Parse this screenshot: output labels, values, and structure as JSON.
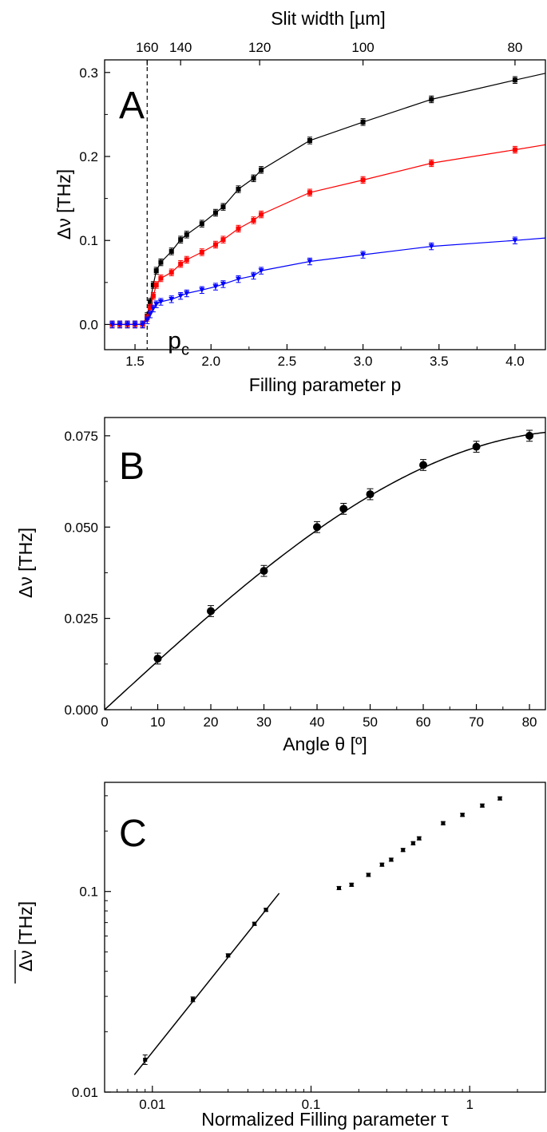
{
  "chart_data": [
    {
      "panel": "A",
      "type": "line",
      "xlabel": "Filling parameter p",
      "ylabel": "Δν [THz]",
      "top_axis_label": "Slit width [µm]",
      "xlim": [
        1.3,
        4.2
      ],
      "ylim": [
        -0.03,
        0.315
      ],
      "x_ticks": [
        1.5,
        2.0,
        2.5,
        3.0,
        3.5,
        4.0
      ],
      "x_tick_labels": [
        "1.5",
        "2.0",
        "2.5",
        "3.0",
        "3.5",
        "4.0"
      ],
      "y_ticks": [
        0.0,
        0.1,
        0.2,
        0.3
      ],
      "y_tick_labels": [
        "0.0",
        "0.1",
        "0.2",
        "0.3"
      ],
      "top_ticks": [
        {
          "p": 1.58,
          "label": "160"
        },
        {
          "p": 1.8,
          "label": "140"
        },
        {
          "p": 2.32,
          "label": "120"
        },
        {
          "p": 3.0,
          "label": "100"
        },
        {
          "p": 4.0,
          "label": "80"
        }
      ],
      "threshold": {
        "x": 1.58,
        "label": "p",
        "subscript": "c",
        "style": "dashed"
      },
      "series": [
        {
          "color": "#000000",
          "marker": "square",
          "x": [
            1.35,
            1.4,
            1.45,
            1.5,
            1.55,
            1.58,
            1.6,
            1.62,
            1.64,
            1.67,
            1.74,
            1.8,
            1.84,
            1.94,
            2.03,
            2.08,
            2.18,
            2.28,
            2.33,
            2.65,
            3.0,
            3.45,
            4.0,
            4.2
          ],
          "y": [
            0.0,
            0.0,
            0.0,
            0.0,
            0.0,
            0.01,
            0.027,
            0.047,
            0.064,
            0.074,
            0.087,
            0.101,
            0.107,
            0.12,
            0.133,
            0.14,
            0.161,
            0.174,
            0.184,
            0.219,
            0.241,
            0.268,
            0.291,
            0.299
          ],
          "err": 0.004
        },
        {
          "color": "#ff0000",
          "marker": "square",
          "x": [
            1.35,
            1.4,
            1.45,
            1.5,
            1.55,
            1.58,
            1.6,
            1.62,
            1.64,
            1.67,
            1.74,
            1.8,
            1.84,
            1.94,
            2.03,
            2.08,
            2.18,
            2.28,
            2.33,
            2.65,
            3.0,
            3.45,
            4.0,
            4.2
          ],
          "y": [
            0.0,
            0.0,
            0.0,
            0.0,
            0.0,
            0.008,
            0.02,
            0.034,
            0.047,
            0.055,
            0.062,
            0.072,
            0.077,
            0.086,
            0.095,
            0.101,
            0.114,
            0.124,
            0.131,
            0.157,
            0.172,
            0.192,
            0.208,
            0.214
          ],
          "err": 0.004
        },
        {
          "color": "#0000ff",
          "marker": "triangle-down",
          "x": [
            1.35,
            1.4,
            1.45,
            1.5,
            1.55,
            1.58,
            1.6,
            1.62,
            1.64,
            1.67,
            1.74,
            1.8,
            1.84,
            1.94,
            2.03,
            2.08,
            2.18,
            2.28,
            2.33,
            2.65,
            3.0,
            3.45,
            4.0,
            4.2
          ],
          "y": [
            0.0,
            0.0,
            0.0,
            0.0,
            0.0,
            0.005,
            0.012,
            0.019,
            0.024,
            0.027,
            0.03,
            0.034,
            0.037,
            0.041,
            0.045,
            0.048,
            0.054,
            0.058,
            0.064,
            0.075,
            0.083,
            0.093,
            0.1,
            0.103
          ],
          "err": 0.004
        }
      ]
    },
    {
      "panel": "B",
      "type": "scatter",
      "xlabel": "Angle θ [º]",
      "ylabel": "Δν [THz]",
      "xlim": [
        0,
        83
      ],
      "ylim": [
        0,
        0.08
      ],
      "x_ticks": [
        0,
        10,
        20,
        30,
        40,
        50,
        60,
        70,
        80
      ],
      "x_tick_labels": [
        "0",
        "10",
        "20",
        "30",
        "40",
        "50",
        "60",
        "70",
        "80"
      ],
      "y_ticks": [
        0.0,
        0.025,
        0.05,
        0.075
      ],
      "y_tick_labels": [
        "0.000",
        "0.025",
        "0.050",
        "0.075"
      ],
      "points": {
        "x": [
          10,
          20,
          30,
          40,
          45,
          50,
          60,
          70,
          80
        ],
        "y": [
          0.014,
          0.027,
          0.038,
          0.05,
          0.055,
          0.059,
          0.067,
          0.072,
          0.075
        ],
        "err": 0.0015
      },
      "fit": {
        "form": "a*sin(theta)",
        "a": 0.0765
      }
    },
    {
      "panel": "C",
      "type": "scatter",
      "xlabel": "Normalized Filling parameter τ",
      "ylabel": "Δν [THz]",
      "ylabel_overline": true,
      "log_x": true,
      "log_y": true,
      "xlim": [
        0.005,
        3.0
      ],
      "ylim": [
        0.01,
        0.35
      ],
      "x_ticks": [
        0.01,
        0.1,
        1
      ],
      "x_tick_labels": [
        "0.01",
        "0.1",
        "1"
      ],
      "y_ticks": [
        0.01,
        0.1
      ],
      "y_tick_labels": [
        "0.01",
        "0.1"
      ],
      "points": {
        "x": [
          0.009,
          0.018,
          0.03,
          0.044,
          0.052,
          0.15,
          0.18,
          0.23,
          0.28,
          0.32,
          0.38,
          0.44,
          0.48,
          0.68,
          0.9,
          1.2,
          1.55
        ],
        "y": [
          0.0145,
          0.029,
          0.048,
          0.069,
          0.081,
          0.104,
          0.108,
          0.121,
          0.136,
          0.144,
          0.161,
          0.174,
          0.184,
          0.219,
          0.241,
          0.268,
          0.291
        ]
      },
      "fit": {
        "x": [
          0.0077,
          0.063
        ],
        "y": [
          0.0122,
          0.098
        ]
      }
    }
  ]
}
